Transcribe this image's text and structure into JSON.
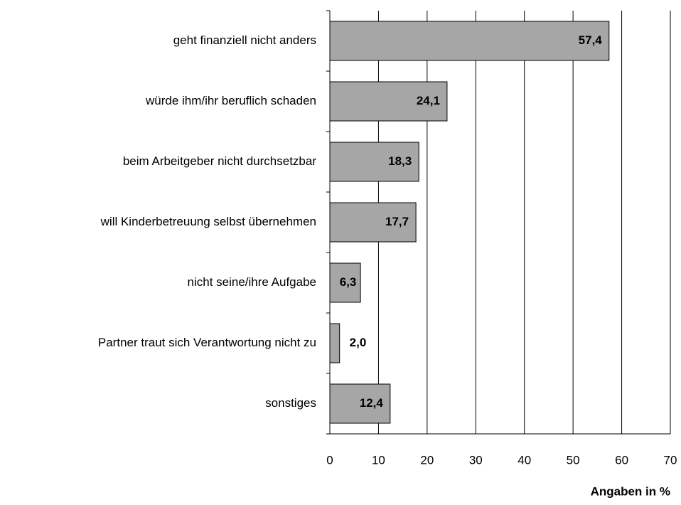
{
  "chart_data": {
    "type": "bar",
    "orientation": "horizontal",
    "categories": [
      "geht finanziell nicht anders",
      "würde ihm/ihr beruflich schaden",
      "beim Arbeitgeber nicht durchsetzbar",
      "will Kinderbetreuung selbst übernehmen",
      "nicht seine/ihre Aufgabe",
      "Partner traut sich Verantwortung nicht zu",
      "sonstiges"
    ],
    "values": [
      57.4,
      24.1,
      18.3,
      17.7,
      6.3,
      2.0,
      12.4
    ],
    "value_labels": [
      "57,4",
      "24,1",
      "18,3",
      "17,7",
      "6,3",
      "2,0",
      "12,4"
    ],
    "color": "#a6a6a6",
    "xlim": [
      0,
      70
    ],
    "xticks": [
      0,
      10,
      20,
      30,
      40,
      50,
      60,
      70
    ],
    "grid": true,
    "x_label": "Angaben in %"
  }
}
